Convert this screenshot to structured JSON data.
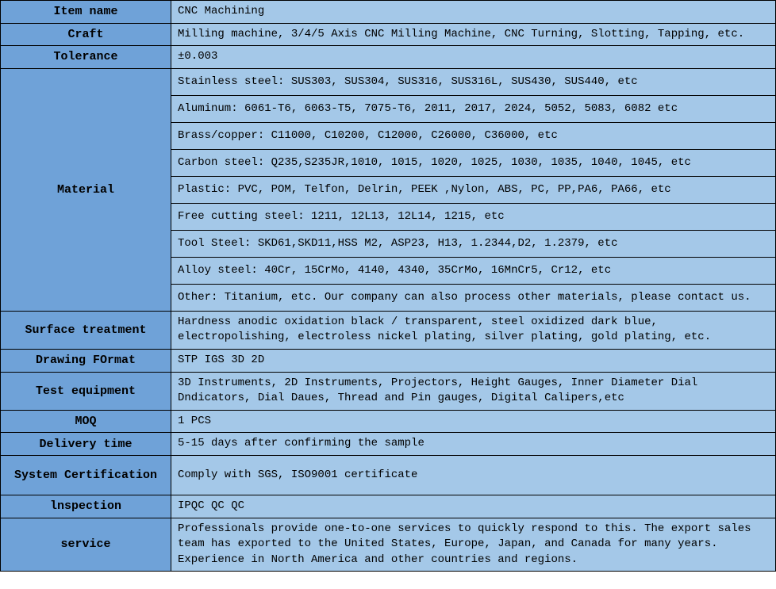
{
  "colors": {
    "label_bg": "#6fa2d8",
    "value_bg": "#a4c8e8",
    "border": "#000000",
    "text": "#000000"
  },
  "rows": [
    {
      "label": "Item name",
      "values": [
        "CNC Machining"
      ]
    },
    {
      "label": "Craft",
      "values": [
        "Milling machine, 3/4/5 Axis CNC Milling Machine, CNC Turning, Slotting, Tapping, etc."
      ]
    },
    {
      "label": "Tolerance",
      "values": [
        "±0.003"
      ]
    },
    {
      "label": "Material",
      "values": [
        "Stainless steel: SUS303, SUS304, SUS316, SUS316L, SUS430, SUS440, etc",
        "Aluminum: 6061-T6, 6063-T5, 7075-T6, 2011, 2017, 2024, 5052, 5083, 6082 etc",
        "Brass/copper: C11000, C10200, C12000, C26000, C36000, etc",
        "Carbon steel:  Q235,S235JR,1010, 1015, 1020, 1025, 1030, 1035, 1040, 1045, etc",
        "Plastic: PVC, POM, Telfon, Delrin, PEEK ,Nylon, ABS, PC, PP,PA6, PA66, etc",
        "Free cutting steel: 1211, 12L13, 12L14, 1215, etc",
        "Tool Steel: SKD61,SKD11,HSS M2, ASP23, H13, 1.2344,D2, 1.2379, etc",
        "Alloy steel: 40Cr, 15CrMo, 4140, 4340, 35CrMo, 16MnCr5, Cr12, etc",
        "Other: Titanium, etc. Our company can also process other materials, please contact us."
      ]
    },
    {
      "label": "Surface treatment",
      "values": [
        "Hardness anodic oxidation black / transparent, steel oxidized dark blue, electropolishing, electroless nickel plating, silver plating, gold plating, etc."
      ]
    },
    {
      "label": "Drawing FOrmat",
      "values": [
        "STP IGS 3D 2D"
      ]
    },
    {
      "label": "Test equipment",
      "values": [
        "3D Instruments, 2D Instruments, Projectors, Height Gauges, Inner Diameter Dial Dndicators, Dial Daues, Thread and Pin gauges, Digital Calipers,etc"
      ]
    },
    {
      "label": "MOQ",
      "values": [
        "1 PCS"
      ]
    },
    {
      "label": "Delivery time",
      "values": [
        "5-15 days after confirming the sample"
      ]
    },
    {
      "label": "System Certification",
      "values": [
        "Comply with SGS, ISO9001 certificate"
      ]
    },
    {
      "label": "lnspection",
      "values": [
        "IPQC  QC  QC"
      ]
    },
    {
      "label": "service",
      "values": [
        "Professionals provide one-to-one services to quickly respond to this. The export sales team has exported to the United States, Europe, Japan, and Canada for many years. Experience in North America and other countries and regions."
      ]
    }
  ],
  "row_heights": {
    "default": 28,
    "material_sub": 34,
    "surface": 42,
    "test": 42,
    "system": 50,
    "service": 60
  }
}
